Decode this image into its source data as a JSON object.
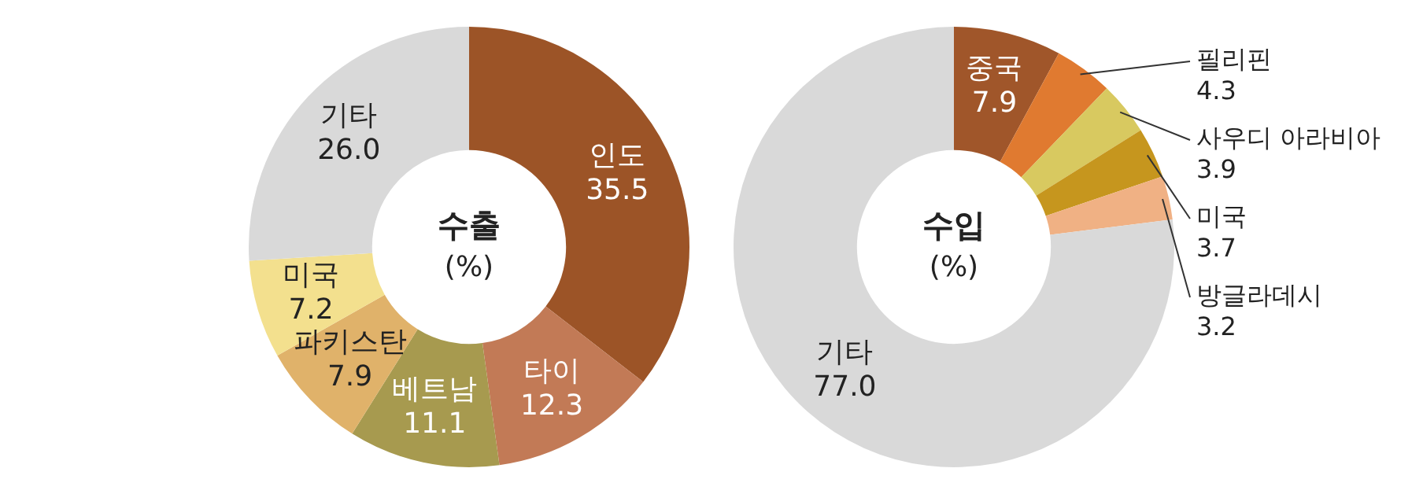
{
  "chart_data": [
    {
      "type": "donut",
      "title": "수출",
      "subtitle": "(%)",
      "categories": [
        "인도",
        "타이",
        "베트남",
        "파키스탄",
        "미국",
        "기타"
      ],
      "values": [
        35.5,
        12.3,
        11.1,
        7.9,
        7.2,
        26.0
      ],
      "value_labels": [
        "35.5",
        "12.3",
        "11.1",
        "7.9",
        "7.2",
        "26.0"
      ],
      "colors": [
        "#9c5427",
        "#c27a56",
        "#a79a4f",
        "#e0b26a",
        "#f3e08e",
        "#d9d9d9"
      ],
      "legend": false
    },
    {
      "type": "donut",
      "title": "수입",
      "subtitle": "(%)",
      "categories": [
        "중국",
        "필리핀",
        "사우디 아라비아",
        "미국",
        "방글라데시",
        "기타"
      ],
      "values": [
        7.9,
        4.3,
        3.9,
        3.7,
        3.2,
        77.0
      ],
      "value_labels": [
        "7.9",
        "4.3",
        "3.9",
        "3.7",
        "3.2",
        "77.0"
      ],
      "colors": [
        "#a0562a",
        "#e07a30",
        "#d8c960",
        "#c6961e",
        "#f0b184",
        "#d9d9d9"
      ],
      "legend": false
    }
  ]
}
